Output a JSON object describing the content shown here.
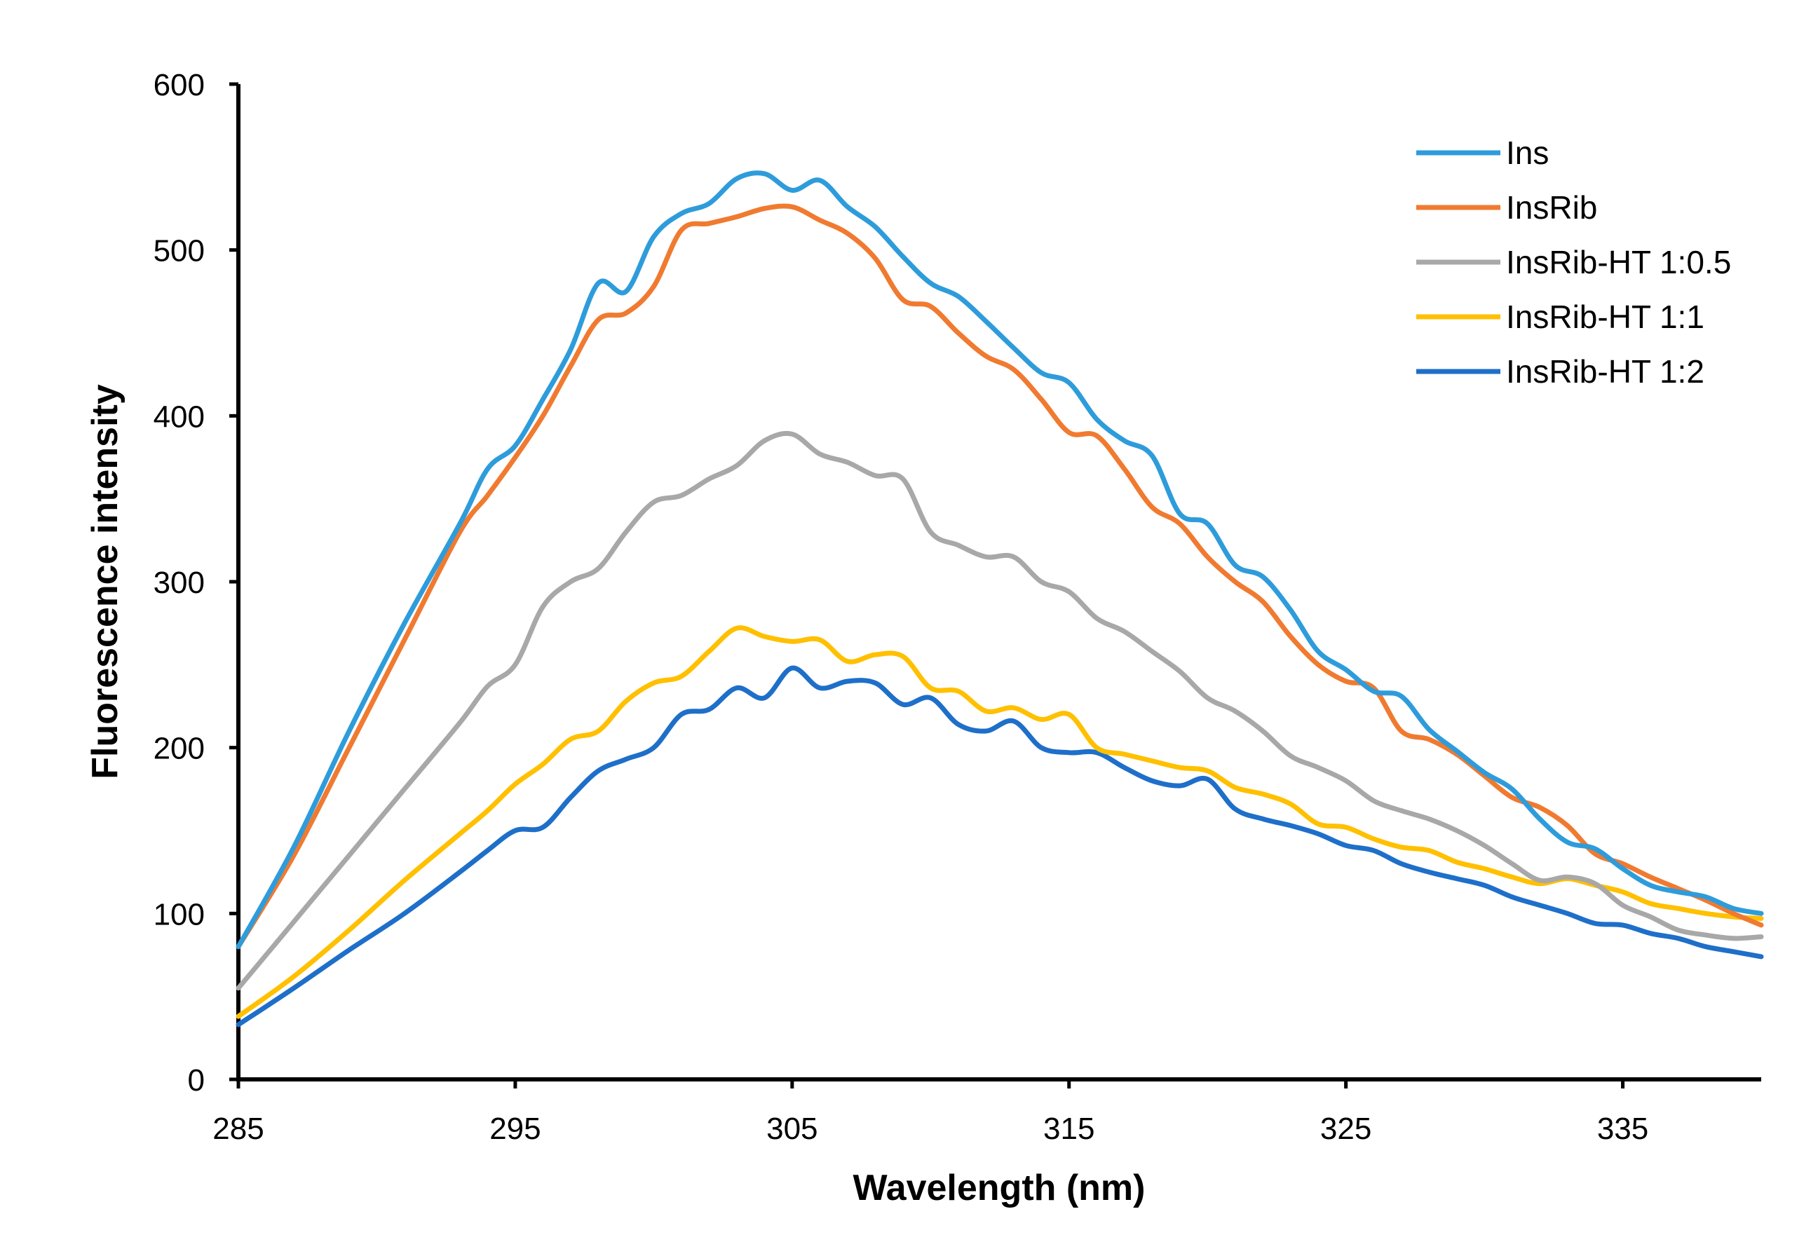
{
  "chart_data": {
    "type": "line",
    "title": "",
    "xlabel": "Wavelength (nm)",
    "ylabel": "Fluorescence intensity",
    "xlim": [
      285,
      340
    ],
    "ylim": [
      0,
      600
    ],
    "x_ticks": [
      285,
      295,
      305,
      315,
      325,
      335
    ],
    "y_ticks": [
      0,
      100,
      200,
      300,
      400,
      500,
      600
    ],
    "legend_position": "top-right",
    "grid": false,
    "x": [
      285,
      287,
      289,
      291,
      293,
      294,
      295,
      296,
      297,
      298,
      299,
      300,
      301,
      302,
      303,
      304,
      305,
      306,
      307,
      308,
      309,
      310,
      311,
      312,
      313,
      314,
      315,
      316,
      317,
      318,
      319,
      320,
      321,
      322,
      323,
      324,
      325,
      326,
      327,
      328,
      329,
      330,
      331,
      332,
      333,
      334,
      335,
      336,
      337,
      338,
      339,
      340
    ],
    "series": [
      {
        "name": "Ins",
        "color": "#2E9CDB",
        "values": [
          80,
          140,
          210,
          275,
          335,
          368,
          382,
          410,
          440,
          480,
          475,
          508,
          522,
          528,
          543,
          546,
          536,
          542,
          526,
          514,
          496,
          480,
          472,
          457,
          441,
          426,
          420,
          398,
          385,
          376,
          341,
          335,
          310,
          303,
          283,
          258,
          247,
          234,
          231,
          211,
          198,
          185,
          175,
          157,
          143,
          139,
          127,
          117,
          113,
          110,
          103,
          100
        ]
      },
      {
        "name": "InsRib",
        "color": "#F07A30",
        "values": [
          80,
          135,
          200,
          265,
          330,
          352,
          375,
          400,
          430,
          458,
          462,
          478,
          512,
          516,
          520,
          525,
          526,
          518,
          510,
          495,
          470,
          466,
          450,
          436,
          428,
          410,
          390,
          388,
          368,
          345,
          335,
          315,
          300,
          288,
          267,
          250,
          240,
          236,
          210,
          205,
          196,
          183,
          170,
          164,
          153,
          136,
          130,
          122,
          115,
          108,
          100,
          93
        ]
      },
      {
        "name": "InsRib-HT 1:0.5",
        "color": "#A8A8A8",
        "values": [
          55,
          95,
          135,
          175,
          215,
          237,
          250,
          285,
          300,
          308,
          330,
          348,
          352,
          362,
          370,
          385,
          389,
          377,
          372,
          364,
          362,
          330,
          322,
          315,
          315,
          300,
          294,
          278,
          270,
          258,
          246,
          230,
          222,
          210,
          195,
          188,
          180,
          168,
          162,
          157,
          150,
          141,
          130,
          120,
          122,
          118,
          105,
          98,
          90,
          87,
          85,
          86
        ]
      },
      {
        "name": "InsRib-HT 1:1",
        "color": "#FFC000",
        "values": [
          38,
          62,
          90,
          120,
          148,
          162,
          178,
          190,
          205,
          210,
          228,
          239,
          243,
          258,
          272,
          267,
          264,
          265,
          252,
          256,
          255,
          236,
          234,
          222,
          224,
          217,
          220,
          200,
          196,
          192,
          188,
          186,
          176,
          172,
          166,
          154,
          152,
          145,
          140,
          138,
          131,
          127,
          122,
          118,
          121,
          117,
          113,
          106,
          103,
          100,
          98,
          97
        ]
      },
      {
        "name": "InsRib-HT 1:2",
        "color": "#1E6FC9",
        "values": [
          33,
          55,
          78,
          100,
          125,
          138,
          150,
          152,
          170,
          186,
          193,
          200,
          220,
          223,
          236,
          230,
          248,
          236,
          240,
          239,
          226,
          230,
          214,
          210,
          216,
          200,
          197,
          197,
          188,
          180,
          177,
          181,
          163,
          157,
          153,
          148,
          141,
          138,
          130,
          125,
          121,
          117,
          110,
          105,
          100,
          94,
          93,
          88,
          85,
          80,
          77,
          74
        ]
      }
    ]
  }
}
